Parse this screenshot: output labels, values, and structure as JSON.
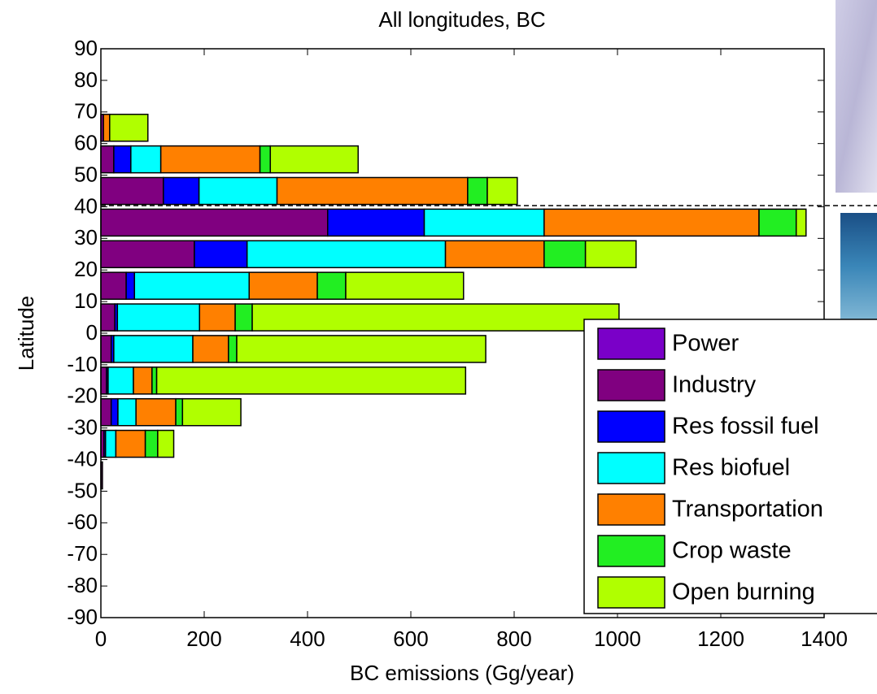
{
  "chart_data": {
    "type": "barh_stacked",
    "title": "All longitudes, BC",
    "x_label": "BC emissions (Gg/year)",
    "y_label": "Latitude",
    "y": [
      65,
      55,
      45,
      35,
      25,
      15,
      5,
      -5,
      -15,
      -25,
      -35,
      -45
    ],
    "series": [
      {
        "name": "Power",
        "color": "#7a00c8",
        "values": [
          0,
          0,
          0,
          0,
          0,
          0,
          0,
          0,
          0,
          0,
          0,
          0
        ]
      },
      {
        "name": "Industry",
        "color": "#800080",
        "values": [
          5,
          25,
          121,
          439,
          181,
          49,
          27,
          20,
          11,
          20,
          6,
          3
        ]
      },
      {
        "name": "Res fossil fuel",
        "color": "#0000ff",
        "values": [
          0,
          33,
          69,
          187,
          102,
          16,
          5,
          5,
          3,
          13,
          3,
          0
        ]
      },
      {
        "name": "Res biofuel",
        "color": "#00ffff",
        "values": [
          0,
          58,
          151,
          232,
          384,
          222,
          159,
          153,
          49,
          35,
          20,
          0
        ]
      },
      {
        "name": "Transportation",
        "color": "#ff8000",
        "values": [
          12,
          192,
          369,
          416,
          191,
          132,
          69,
          69,
          36,
          77,
          57,
          0
        ]
      },
      {
        "name": "Crop waste",
        "color": "#22ee22",
        "values": [
          0,
          20,
          38,
          72,
          80,
          55,
          33,
          16,
          9,
          13,
          24,
          0
        ]
      },
      {
        "name": "Open burning",
        "color": "#b0ff00",
        "values": [
          74,
          170,
          58,
          19,
          98,
          228,
          710,
          482,
          598,
          113,
          31,
          0
        ]
      }
    ],
    "xlim": [
      0,
      1400
    ],
    "xticks": [
      0,
      200,
      400,
      600,
      800,
      1000,
      1200,
      1400
    ],
    "ylim": [
      -90,
      90
    ],
    "yticks": [
      -90,
      -80,
      -70,
      -60,
      -50,
      -40,
      -30,
      -20,
      -10,
      0,
      10,
      20,
      30,
      40,
      50,
      60,
      70,
      80,
      90
    ],
    "legend": "lower right"
  }
}
